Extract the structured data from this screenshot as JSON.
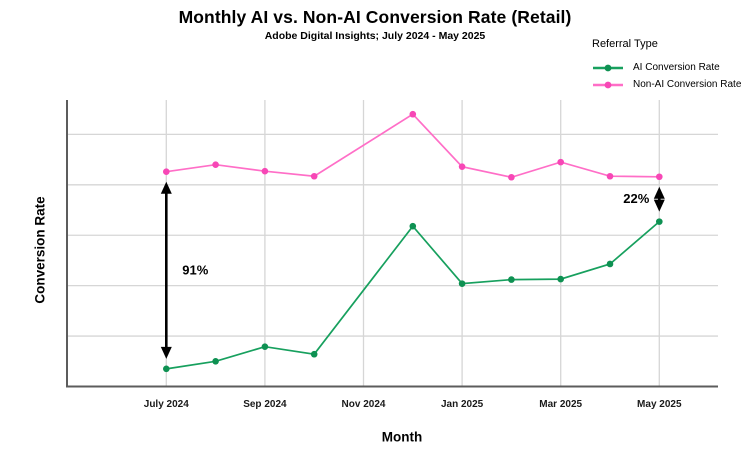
{
  "header": {
    "title": "Monthly AI vs. Non-AI Conversion Rate (Retail)",
    "subtitle": "Adobe Digital Insights; July 2024 - May 2025"
  },
  "legend": {
    "title": "Referral Type",
    "items": [
      {
        "label": "AI Conversion Rate",
        "color": "#17A05E",
        "marker_color": "#0E9152"
      },
      {
        "label": "Non-AI Conversion Rate",
        "color": "#FF6EC7",
        "marker_color": "#F747B6"
      }
    ]
  },
  "axes": {
    "x_label": "Month",
    "y_label": "Conversion Rate",
    "x_tick_labels": [
      "July 2024",
      "Sep 2024",
      "Nov 2024",
      "Jan 2025",
      "Mar 2025",
      "May 2025"
    ]
  },
  "colors": {
    "ai_line": "#17A05E",
    "ai_marker": "#0E9152",
    "non_ai_line": "#FF6EC7",
    "non_ai_marker": "#F747B6",
    "gridline": "#d6d6d6",
    "axis": "#5c5c5c",
    "annotation": "#000000"
  },
  "chart_data": {
    "type": "line",
    "title": "Monthly AI vs. Non-AI Conversion Rate (Retail)",
    "subtitle": "Adobe Digital Insights; July 2024 - May 2025",
    "xlabel": "Month",
    "ylabel": "Conversion Rate",
    "x": [
      "Jul 2024",
      "Aug 2024",
      "Sep 2024",
      "Oct 2024",
      "Nov 2024",
      "Dec 2024",
      "Jan 2025",
      "Feb 2025",
      "Mar 2025",
      "Apr 2025",
      "May 2025"
    ],
    "x_tick_positions": [
      0,
      2,
      4,
      6,
      8,
      10
    ],
    "series": [
      {
        "name": "AI Conversion Rate",
        "color": "#17A05E",
        "marker_color": "#0E9152",
        "values": [
          0.35,
          0.5,
          0.79,
          0.64,
          null,
          3.18,
          2.04,
          2.12,
          2.13,
          2.43,
          3.27
        ]
      },
      {
        "name": "Non-AI Conversion Rate",
        "color": "#FF6EC7",
        "marker_color": "#F747B6",
        "values": [
          4.26,
          4.4,
          4.27,
          4.17,
          null,
          5.4,
          4.36,
          4.15,
          4.45,
          4.17,
          4.16
        ]
      }
    ],
    "value_units": "relative (unlabeled y axis; 1 unit = one gridline step above baseline 0)",
    "ylim": [
      0,
      5.68
    ],
    "gridlines_y": [
      1,
      2,
      3,
      4,
      5
    ],
    "grid": true,
    "legend_position": "top-right",
    "annotations": [
      {
        "label": "91%",
        "month_index": 0,
        "label_side": "right"
      },
      {
        "label": "22%",
        "month_index": 10,
        "label_side": "left"
      }
    ]
  }
}
